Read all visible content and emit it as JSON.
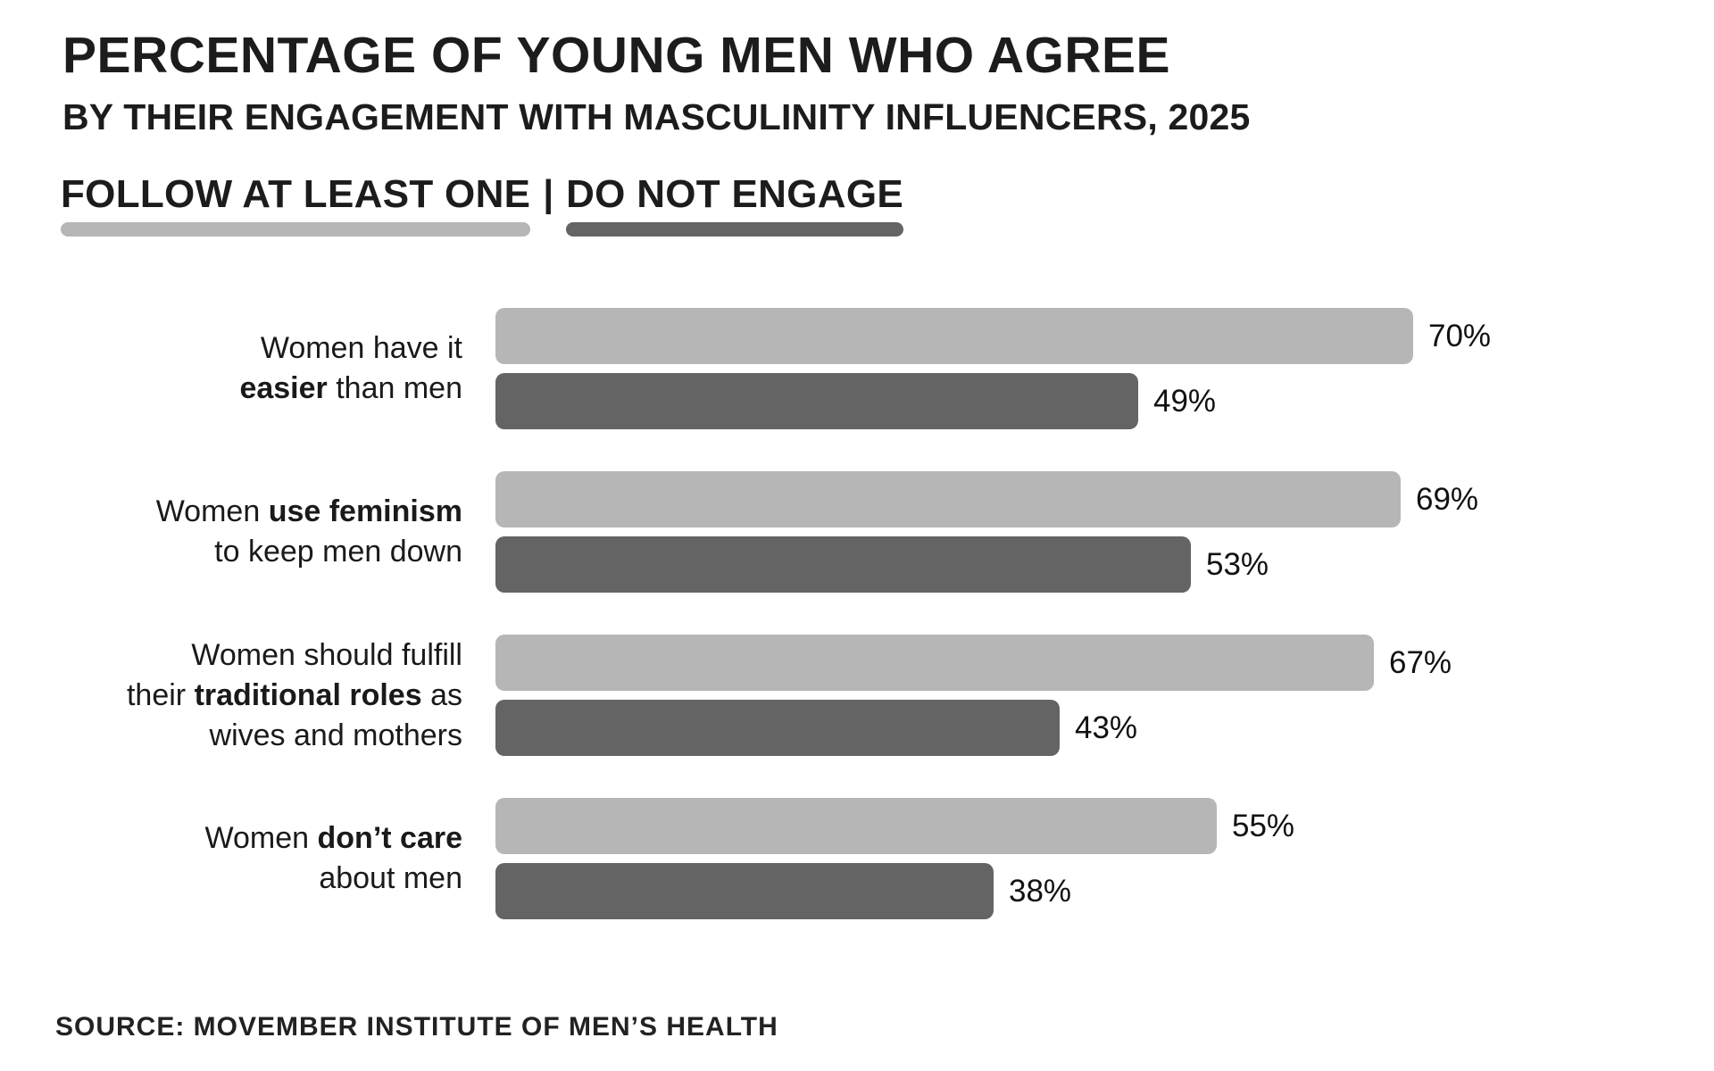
{
  "header": {
    "title": "PERCENTAGE OF YOUNG MEN WHO AGREE",
    "subtitle": "BY THEIR ENGAGEMENT WITH MASCULINITY INFLUENCERS, 2025"
  },
  "legend": {
    "item1": "FOLLOW AT LEAST ONE",
    "divider": "|",
    "item2": "DO NOT ENGAGE"
  },
  "footer": {
    "source": "SOURCE: MOVEMBER INSTITUTE OF MEN’S HEALTH"
  },
  "colors": {
    "follow": "#b6b6b6",
    "not_engage": "#646464",
    "text": "#1c1c1c"
  },
  "chart_data": {
    "type": "bar",
    "orientation": "horizontal",
    "title": "Percentage of young men who agree",
    "subtitle": "By their engagement with masculinity influencers, 2025",
    "categories": [
      "Women have it easier than men",
      "Women use feminism to keep men down",
      "Women should fulfill their traditional roles as wives and mothers",
      "Women don’t care about men"
    ],
    "series": [
      {
        "name": "Follow at least one",
        "values": [
          70,
          69,
          67,
          55
        ],
        "color": "#b6b6b6"
      },
      {
        "name": "Do not engage",
        "values": [
          49,
          53,
          43,
          38
        ],
        "color": "#646464"
      }
    ],
    "value_suffix": "%",
    "xlim": [
      0,
      100
    ],
    "grid": false,
    "legend_position": "top-left",
    "value_labels": "end-of-bar",
    "source": "Movember Institute of Men’s Health"
  },
  "rows": [
    {
      "label_lines": [
        [
          {
            "t": "Women have it"
          }
        ],
        [
          {
            "t": "easier",
            "b": true
          },
          {
            "t": " than men"
          }
        ]
      ],
      "bars": [
        {
          "series": "follow",
          "value": 70,
          "label": "70%"
        },
        {
          "series": "not_engage",
          "value": 49,
          "label": "49%"
        }
      ]
    },
    {
      "label_lines": [
        [
          {
            "t": "Women "
          },
          {
            "t": "use feminism",
            "b": true
          }
        ],
        [
          {
            "t": "to keep men down"
          }
        ]
      ],
      "bars": [
        {
          "series": "follow",
          "value": 69,
          "label": "69%"
        },
        {
          "series": "not_engage",
          "value": 53,
          "label": "53%"
        }
      ]
    },
    {
      "label_lines": [
        [
          {
            "t": "Women should fulfill"
          }
        ],
        [
          {
            "t": "their "
          },
          {
            "t": "traditional roles",
            "b": true
          },
          {
            "t": " as"
          }
        ],
        [
          {
            "t": "wives and mothers"
          }
        ]
      ],
      "bars": [
        {
          "series": "follow",
          "value": 67,
          "label": "67%"
        },
        {
          "series": "not_engage",
          "value": 43,
          "label": "43%"
        }
      ]
    },
    {
      "label_lines": [
        [
          {
            "t": "Women "
          },
          {
            "t": "don’t care",
            "b": true
          }
        ],
        [
          {
            "t": "about men"
          }
        ]
      ],
      "bars": [
        {
          "series": "follow",
          "value": 55,
          "label": "55%"
        },
        {
          "series": "not_engage",
          "value": 38,
          "label": "38%"
        }
      ]
    }
  ]
}
